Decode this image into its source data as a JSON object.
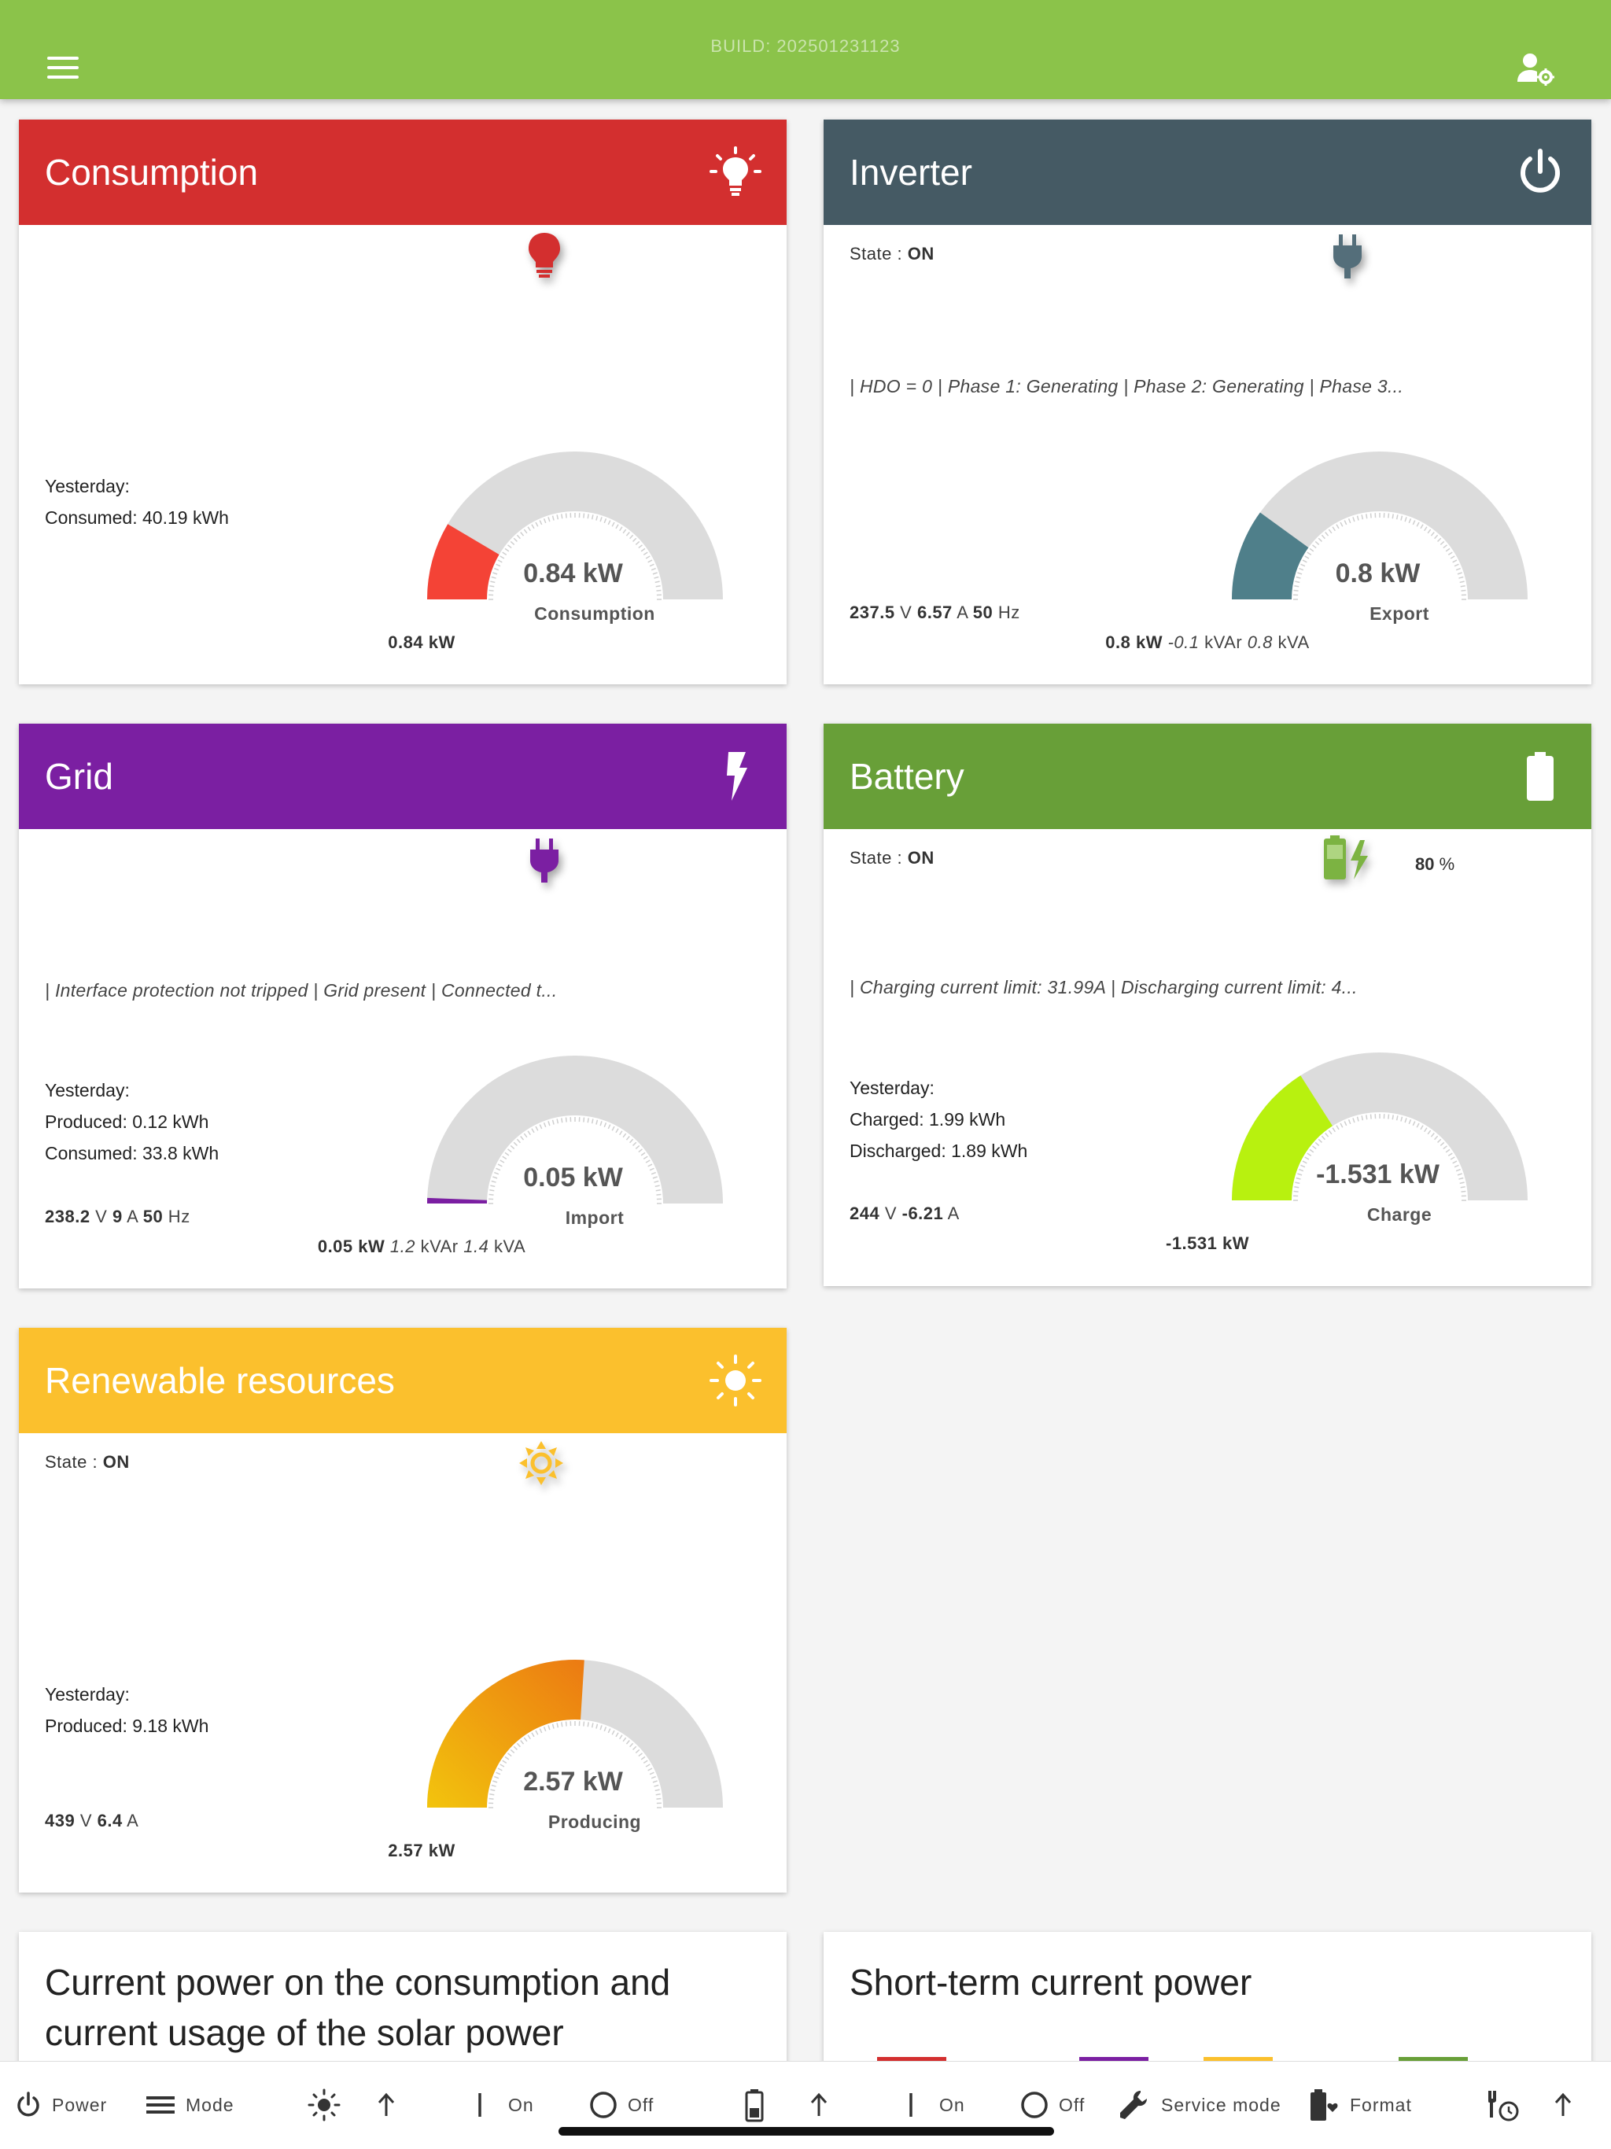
{
  "topbar": {
    "build": "BUILD: 202501231123"
  },
  "colors": {
    "topbar": "#8bc34a",
    "consumption": "#d32f2f",
    "inverter": "#455a64",
    "grid": "#7b1fa2",
    "battery": "#689f38",
    "renewable": "#fbc02d"
  },
  "consumption": {
    "title": "Consumption",
    "yesterday_label": "Yesterday:",
    "consumed": "Consumed: 40.19 kWh",
    "gauge": {
      "value_text": "0.84 kW",
      "label": "Consumption",
      "fraction": 0.17
    },
    "power": "0.84 kW"
  },
  "inverter": {
    "title": "Inverter",
    "state_label": "State : ",
    "state_value": "ON",
    "status": "| HDO = 0 | Phase 1: Generating | Phase 2: Generating | Phase 3...",
    "voltage": "237.5",
    "voltage_unit": " V ",
    "current": "6.57",
    "current_unit": " A ",
    "freq": "50",
    "freq_unit": " Hz",
    "gauge": {
      "value_text": "0.8 kW",
      "label": "Export",
      "fraction": 0.2
    },
    "power": "0.8 kW",
    "reactive": " -0.1",
    "reactive_unit": " kVAr ",
    "apparent": "0.8",
    "apparent_unit": " kVA"
  },
  "grid": {
    "title": "Grid",
    "status": "| Interface protection not tripped | Grid present | Connected t...",
    "yesterday_label": "Yesterday:",
    "produced": "Produced: 0.12 kWh",
    "consumed": "Consumed: 33.8 kWh",
    "voltage": "238.2",
    "voltage_unit": " V ",
    "current": "9",
    "current_unit": " A ",
    "freq": "50",
    "freq_unit": " Hz",
    "gauge": {
      "value_text": "0.05 kW",
      "label": "Import",
      "fraction": 0.01
    },
    "power": "0.05 kW",
    "reactive": " 1.2",
    "reactive_unit": " kVAr ",
    "apparent": "1.4",
    "apparent_unit": " kVA"
  },
  "battery": {
    "title": "Battery",
    "state_label": "State : ",
    "state_value": "ON",
    "soc": "80",
    "soc_unit": " %",
    "status": "| Charging current limit: 31.99A | Discharging current limit: 4...",
    "yesterday_label": "Yesterday:",
    "charged": "Charged: 1.99 kWh",
    "discharged": "Discharged: 1.89 kWh",
    "voltage": "244",
    "voltage_unit": " V ",
    "current": "-6.21",
    "current_unit": " A",
    "gauge": {
      "value_text": "-1.531 kW",
      "label": "Charge",
      "fraction": 0.32
    },
    "power": "-1.531 kW"
  },
  "renewable": {
    "title": "Renewable resources",
    "state_label": "State : ",
    "state_value": "ON",
    "yesterday_label": "Yesterday:",
    "produced": "Produced: 9.18 kWh",
    "voltage": "439",
    "voltage_unit": " V ",
    "current": "6.4",
    "current_unit": " A",
    "gauge": {
      "value_text": "2.57 kW",
      "label": "Producing",
      "fraction": 0.52
    },
    "power": "2.57 kW"
  },
  "charts": {
    "current_power_title": "Current power on the consumption and current usage of the solar power",
    "short_term_title": "Short-term current power"
  },
  "bottombar": {
    "power": "Power",
    "mode": "Mode",
    "on1": "On",
    "off1": "Off",
    "on2": "On",
    "off2": "Off",
    "service_mode": "Service mode",
    "format": "Format"
  }
}
